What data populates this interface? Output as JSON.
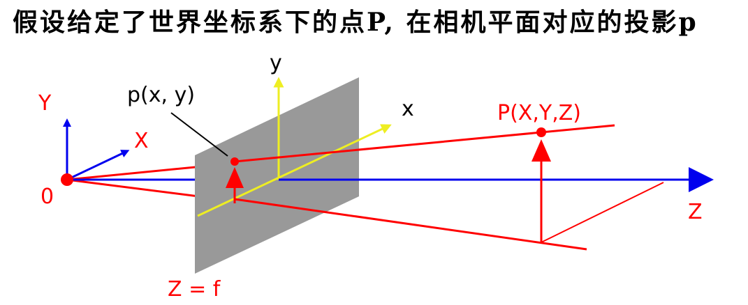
{
  "caption": "假设给定了世界坐标系下的点P, 在相机平面对应的投影p",
  "labels": {
    "world_y_axis": "Y",
    "world_x_axis": "X",
    "origin": "0",
    "optical_axis": "Z",
    "image_y_axis": "y",
    "image_x_axis": "x",
    "image_point": "p(x, y)",
    "world_point": "P(X,Y,Z)",
    "image_plane": "Z = f"
  },
  "colors": {
    "world_axes": "#0000ee",
    "image_axes": "#eeee22",
    "projection": "#ff0000",
    "image_plane_fill": "#999999",
    "text_black": "#000000"
  }
}
